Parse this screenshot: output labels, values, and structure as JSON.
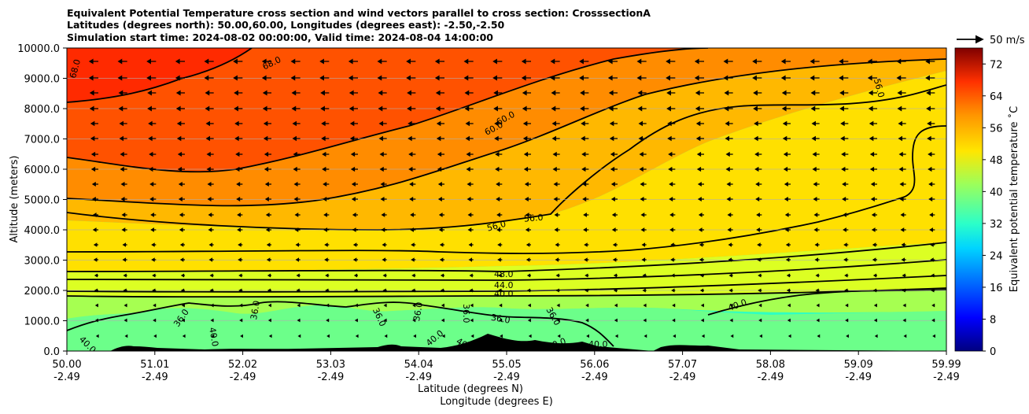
{
  "titles": [
    "Equivalent Potential Temperature cross section and wind vectors parallel to cross section: CrosssectionA",
    "Latitudes (degrees north): 50.00,60.00, Longitudes (degrees east): -2.50,-2.50",
    "Simulation start time: 2024-08-02 00:00:00, Valid time: 2024-08-04 14:00:00"
  ],
  "quiver_key": "50 m/s",
  "chart_data": {
    "type": "heatmap",
    "ylabel": "Altitude (meters)",
    "xlabel_lat": "Latitude (degrees N)",
    "xlabel_lon": "Longitude (degrees E)",
    "colorbar_label": "Equivalent potential temperature ˚C",
    "ylim": [
      0,
      10000
    ],
    "y_ticks": [
      "0.0",
      "1000.0",
      "2000.0",
      "3000.0",
      "4000.0",
      "5000.0",
      "6000.0",
      "7000.0",
      "8000.0",
      "9000.0",
      "10000.0"
    ],
    "x_ticks_lat": [
      "50.00",
      "51.01",
      "52.02",
      "53.03",
      "54.04",
      "55.05",
      "56.06",
      "57.07",
      "58.08",
      "59.09",
      "59.99"
    ],
    "x_ticks_lon": [
      "-2.49",
      "-2.49",
      "-2.49",
      "-2.49",
      "-2.49",
      "-2.49",
      "-2.49",
      "-2.49",
      "-2.49",
      "-2.49",
      "-2.49"
    ],
    "colorbar_range": [
      0,
      76
    ],
    "colorbar_ticks": [
      "0",
      "8",
      "16",
      "24",
      "32",
      "40",
      "48",
      "56",
      "64",
      "72"
    ],
    "grid": "horizontal",
    "contour_labels": [
      "68.0",
      "68.0",
      "60.0",
      "60.0",
      "56.0",
      "56.0",
      "56.0",
      "48.0",
      "44.0",
      "40.0",
      "40.0",
      "36.0",
      "36.0",
      "36.0",
      "36.0",
      "36.0",
      "36.0",
      "36.0",
      "40.0",
      "40.0",
      "40.0",
      "40.0",
      "40.0",
      "40.0"
    ],
    "wind_direction": "southward (leftward), strongest aloft"
  }
}
